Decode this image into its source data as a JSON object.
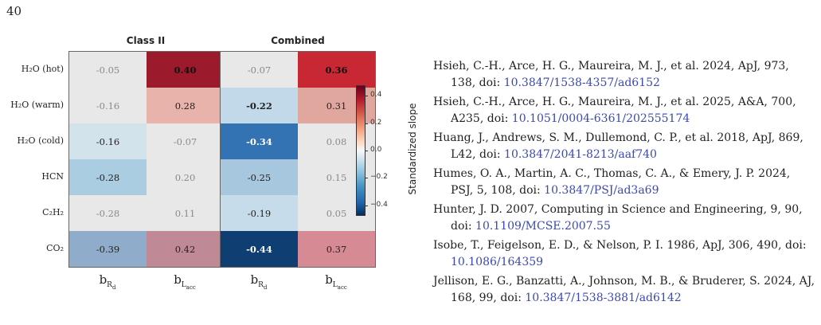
{
  "page_number": "40",
  "figure": {
    "panels": [
      {
        "title": "Class II",
        "cells": [
          [
            "-0.05",
            "0.40"
          ],
          [
            "-0.16",
            "0.28"
          ],
          [
            "-0.16",
            "-0.07"
          ],
          [
            "-0.28",
            "0.20"
          ],
          [
            "-0.28",
            "0.11"
          ],
          [
            "-0.39",
            "0.42"
          ]
        ]
      },
      {
        "title": "Combined",
        "cells": [
          [
            "-0.07",
            "0.36"
          ],
          [
            "-0.22",
            "0.31"
          ],
          [
            "-0.34",
            "0.08"
          ],
          [
            "-0.25",
            "0.15"
          ],
          [
            "-0.19",
            "0.05"
          ],
          [
            "-0.44",
            "0.37"
          ]
        ]
      }
    ],
    "row_labels": [
      "H₂O (hot)",
      "H₂O (warm)",
      "H₂O (cold)",
      "HCN",
      "C₂H₂",
      "CO₂"
    ],
    "col_labels": [
      {
        "main": "b",
        "sub": "R",
        "subsub": "d"
      },
      {
        "main": "b",
        "sub": "L",
        "subsub": "acc"
      }
    ],
    "colorbar": {
      "title": "Standardized slope",
      "ticks": [
        "0.4",
        "0.2",
        "0.0",
        "−0.2",
        "−0.4"
      ]
    },
    "cell_colors": {
      "p0": [
        [
          "#e8e8e8",
          "#9b1a2b"
        ],
        [
          "#e8e8e8",
          "#e7b3ab"
        ],
        [
          "#d3e3ec",
          "#e8e8e8"
        ],
        [
          "#aacde2",
          "#e8e8e8"
        ],
        [
          "#e8e8e8",
          "#e8e8e8"
        ],
        [
          "#8fadcb",
          "#bf8996"
        ]
      ],
      "p1": [
        [
          "#e8e8e8",
          "#c72834"
        ],
        [
          "#c1d9e9",
          "#e0a79f"
        ],
        [
          "#3373b4",
          "#e8e8e8"
        ],
        [
          "#a6c7de",
          "#e8e8e8"
        ],
        [
          "#c6dcea",
          "#e8e8e8"
        ],
        [
          "#0f3f72",
          "#d68a94"
        ]
      ]
    },
    "muted_cells": {
      "p0": [
        [
          true,
          false
        ],
        [
          true,
          false
        ],
        [
          false,
          true
        ],
        [
          false,
          true
        ],
        [
          true,
          true
        ],
        [
          false,
          false
        ]
      ],
      "p1": [
        [
          true,
          false
        ],
        [
          false,
          false
        ],
        [
          false,
          true
        ],
        [
          false,
          true
        ],
        [
          false,
          true
        ],
        [
          false,
          false
        ]
      ]
    },
    "bold_cells": {
      "p0": [
        [
          false,
          true
        ],
        [
          false,
          false
        ],
        [
          false,
          false
        ],
        [
          false,
          false
        ],
        [
          false,
          false
        ],
        [
          false,
          false
        ]
      ],
      "p1": [
        [
          false,
          true
        ],
        [
          true,
          false
        ],
        [
          true,
          false
        ],
        [
          false,
          false
        ],
        [
          false,
          false
        ],
        [
          true,
          false
        ]
      ]
    }
  },
  "references": [
    {
      "text": "Hsieh, C.-H., Arce, H. G., Maureira, M. J., et al. 2024, ApJ, 973, 138, doi: ",
      "doi": "10.3847/1538-4357/ad6152"
    },
    {
      "text": "Hsieh, C.-H., Arce, H. G., Maureira, M. J., et al. 2025, A&A, 700, A235, doi: ",
      "doi": "10.1051/0004-6361/202555174"
    },
    {
      "text": "Huang, J., Andrews, S. M., Dullemond, C. P., et al. 2018, ApJ, 869, L42, doi: ",
      "doi": "10.3847/2041-8213/aaf740"
    },
    {
      "text": "Humes, O. A., Martin, A. C., Thomas, C. A., & Emery, J. P. 2024, PSJ, 5, 108, doi: ",
      "doi": "10.3847/PSJ/ad3a69"
    },
    {
      "text": "Hunter, J. D. 2007, Computing in Science and Engineering, 9, 90, doi: ",
      "doi": "10.1109/MCSE.2007.55"
    },
    {
      "text": "Isobe, T., Feigelson, E. D., & Nelson, P. I. 1986, ApJ, 306, 490, doi: ",
      "doi": "10.1086/164359"
    },
    {
      "text": "Jellison, E. G., Banzatti, A., Johnson, M. B., & Bruderer, S. 2024, AJ, 168, 99, doi: ",
      "doi": "10.3847/1538-3881/ad6142"
    }
  ]
}
